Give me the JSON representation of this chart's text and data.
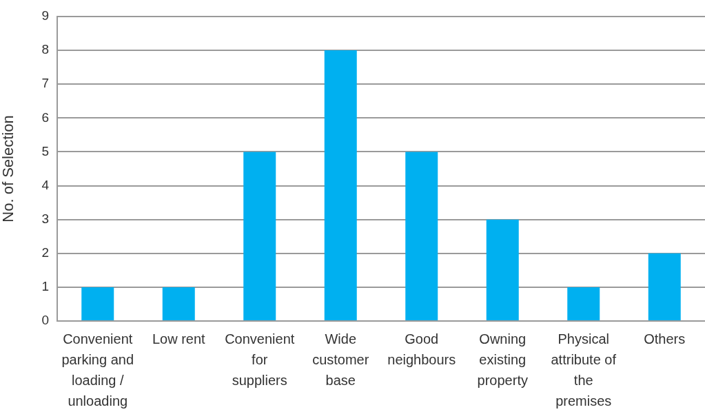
{
  "chart_data": {
    "type": "bar",
    "categories": [
      "Convenient parking and loading / unloading",
      "Low rent",
      "Convenient for suppliers",
      "Wide customer base",
      "Good neighbours",
      "Owning existing property",
      "Physical attribute of the premises",
      "Others"
    ],
    "values": [
      1,
      1,
      5,
      8,
      5,
      3,
      1,
      2
    ],
    "color": "#00b0f0",
    "ylabel": "No. of Selection",
    "ylim": [
      0,
      9
    ],
    "yticks": [
      0,
      1,
      2,
      3,
      4,
      5,
      6,
      7,
      8,
      9
    ],
    "grid": "y"
  }
}
